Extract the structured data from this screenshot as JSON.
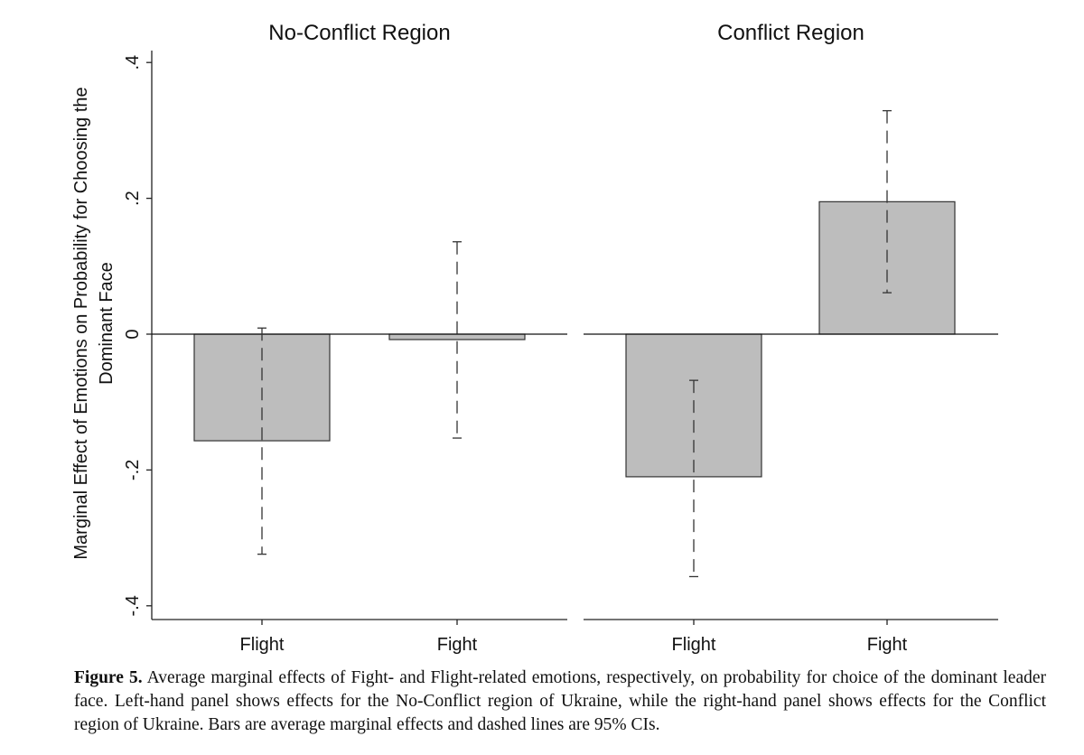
{
  "chart_data": {
    "type": "bar",
    "ylabel_line1": "Marginal Effect of Emotions on Probability for Choosing the",
    "ylabel_line2": "Dominant Face",
    "ylim": [
      -0.42,
      0.42
    ],
    "yticks": [
      {
        "value": 0.4,
        "label": ".4"
      },
      {
        "value": 0.2,
        "label": ".2"
      },
      {
        "value": 0,
        "label": "0"
      },
      {
        "value": -0.2,
        "label": "-.2"
      },
      {
        "value": -0.4,
        "label": "-.4"
      }
    ],
    "error_bar_style": "dashed",
    "bar_color": "#bdbdbd",
    "panels": [
      {
        "title": "No-Conflict Region",
        "categories": [
          "Flight",
          "Fight"
        ],
        "values": [
          -0.157,
          -0.008
        ],
        "ci_lower": [
          -0.324,
          -0.153
        ],
        "ci_upper": [
          0.009,
          0.136
        ]
      },
      {
        "title": "Conflict Region",
        "categories": [
          "Flight",
          "Fight"
        ],
        "values": [
          -0.21,
          0.195
        ],
        "ci_lower": [
          -0.357,
          0.061
        ],
        "ci_upper": [
          -0.068,
          0.329
        ]
      }
    ]
  },
  "caption": {
    "label": "Figure 5.",
    "text": "Average marginal effects of Fight- and Flight-related emotions, respectively, on probability for choice of the dominant leader face. Left-hand panel shows effects for the No-Conflict region of Ukraine, while the right-hand panel shows effects for the Conflict region of Ukraine. Bars are average marginal effects and dashed lines are 95% CIs."
  }
}
